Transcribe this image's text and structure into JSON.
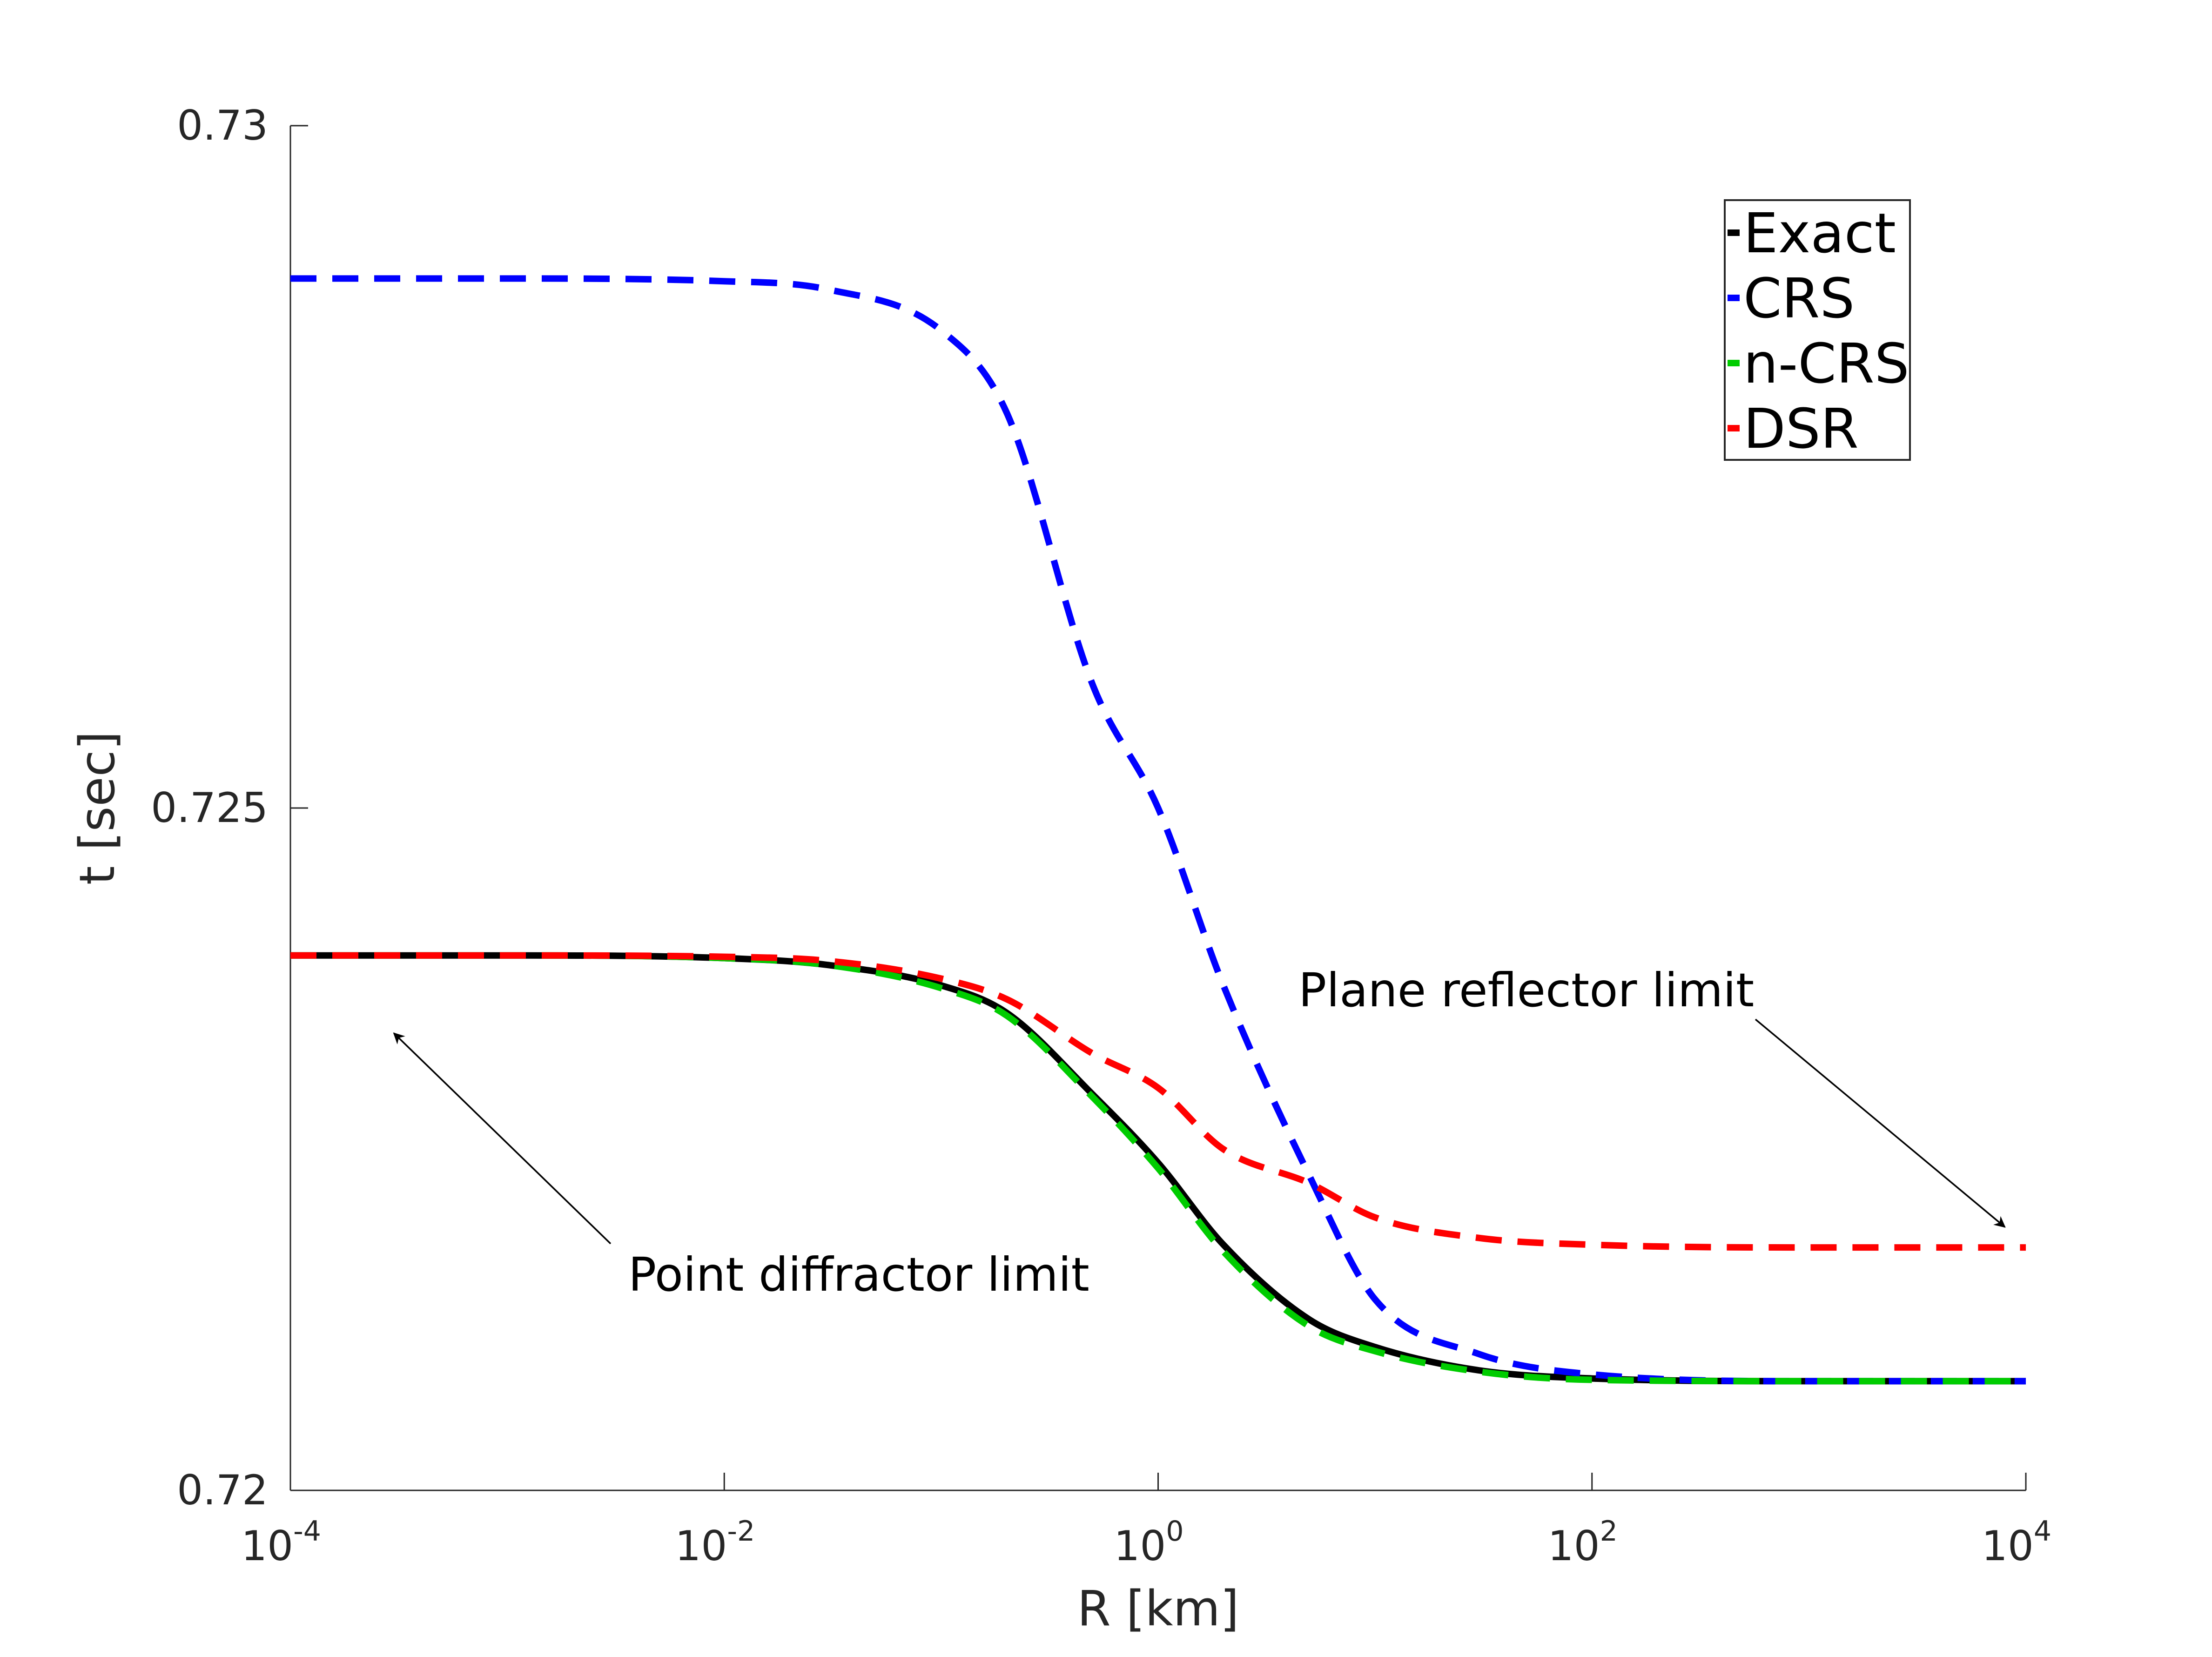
{
  "chart_data": {
    "type": "line",
    "title": "",
    "xlabel": "R [km]",
    "ylabel": "t [sec]",
    "xscale": "log",
    "xlim": [
      0.0001,
      10000
    ],
    "ylim": [
      0.72,
      0.73
    ],
    "x_ticks": [
      {
        "base": "10",
        "exp": "-4",
        "value": 0.0001
      },
      {
        "base": "10",
        "exp": "-2",
        "value": 0.01
      },
      {
        "base": "10",
        "exp": "0",
        "value": 1
      },
      {
        "base": "10",
        "exp": "2",
        "value": 100
      },
      {
        "base": "10",
        "exp": "4",
        "value": 10000
      }
    ],
    "y_ticks": [
      {
        "label": "0.72",
        "value": 0.72
      },
      {
        "label": "0.725",
        "value": 0.725
      },
      {
        "label": "0.73",
        "value": 0.73
      }
    ],
    "grid": false,
    "legend_position": "top-right",
    "x": [
      0.0001,
      0.001,
      0.01,
      0.03,
      0.1,
      0.2,
      0.5,
      1,
      2,
      5,
      10,
      30,
      100,
      1000,
      10000
    ],
    "series": [
      {
        "name": "Exact",
        "color": "#000000",
        "dash": "solid",
        "values": [
          0.72392,
          0.72392,
          0.7239,
          0.72385,
          0.7237,
          0.7235,
          0.7229,
          0.7224,
          0.7218,
          0.72125,
          0.72105,
          0.72088,
          0.72082,
          0.7208,
          0.7208
        ]
      },
      {
        "name": "CRS",
        "color": "#0000ff",
        "dash": "dashed",
        "values": [
          0.72888,
          0.72888,
          0.72886,
          0.7288,
          0.7285,
          0.7279,
          0.7259,
          0.725,
          0.7237,
          0.7223,
          0.7214,
          0.721,
          0.72085,
          0.7208,
          0.7208
        ]
      },
      {
        "name": "n-CRS",
        "color": "#00cc00",
        "dash": "dashed",
        "values": [
          0.72392,
          0.72392,
          0.7239,
          0.72385,
          0.72368,
          0.72348,
          0.72288,
          0.72236,
          0.72175,
          0.7212,
          0.72102,
          0.72087,
          0.72081,
          0.7208,
          0.7208
        ]
      },
      {
        "name": "DSR",
        "color": "#ff0000",
        "dash": "dashed",
        "values": [
          0.72392,
          0.72392,
          0.72391,
          0.72388,
          0.72375,
          0.7236,
          0.7232,
          0.72295,
          0.7225,
          0.72225,
          0.722,
          0.72185,
          0.7218,
          0.72178,
          0.72178
        ]
      }
    ],
    "annotations": [
      {
        "text": "Point diffractor limit",
        "arrow_to": [
          0.0003,
          0.72335
        ]
      },
      {
        "text": "Plane reflector limit",
        "arrow_to": [
          8000,
          0.72193
        ]
      }
    ]
  }
}
